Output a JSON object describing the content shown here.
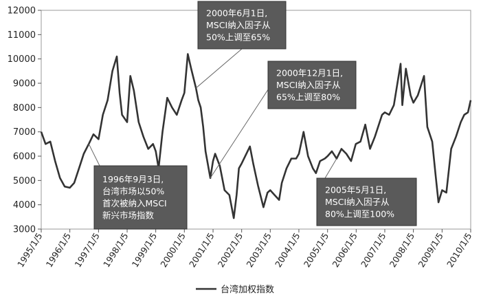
{
  "chart_data": {
    "type": "line",
    "title": "",
    "xlabel": "",
    "ylabel": "",
    "ylim": [
      3000,
      12000
    ],
    "y_ticks": [
      "3000",
      "4000",
      "5000",
      "6000",
      "7000",
      "8000",
      "9000",
      "10000",
      "11000",
      "12000"
    ],
    "x_ticks": [
      "1995/1/5",
      "1996/1/5",
      "1997/1/5",
      "1998/1/5",
      "1999/1/5",
      "2000/1/5",
      "2001/1/5",
      "2002/1/5",
      "2003/1/5",
      "2004/1/5",
      "2005/1/5",
      "2006/1/5",
      "2007/1/5",
      "2008/1/5",
      "2009/1/5",
      "2010/1/5"
    ],
    "legend_position": "bottom",
    "series": [
      {
        "name": "台湾加权指数",
        "color": "#333333",
        "points": [
          [
            "1995/1/5",
            7000
          ],
          [
            "1995/3/1",
            6500
          ],
          [
            "1995/5/1",
            6600
          ],
          [
            "1995/7/1",
            5800
          ],
          [
            "1995/9/1",
            5100
          ],
          [
            "1995/11/1",
            4750
          ],
          [
            "1996/1/5",
            4700
          ],
          [
            "1996/3/1",
            4900
          ],
          [
            "1996/5/1",
            5500
          ],
          [
            "1996/7/1",
            6100
          ],
          [
            "1996/9/3",
            6500
          ],
          [
            "1996/11/1",
            6900
          ],
          [
            "1997/1/5",
            6700
          ],
          [
            "1997/3/1",
            7700
          ],
          [
            "1997/5/1",
            8300
          ],
          [
            "1997/7/1",
            9500
          ],
          [
            "1997/8/26",
            10100
          ],
          [
            "1997/10/1",
            8600
          ],
          [
            "1997/11/1",
            7700
          ],
          [
            "1998/1/5",
            7400
          ],
          [
            "1998/2/15",
            9300
          ],
          [
            "1998/4/1",
            8700
          ],
          [
            "1998/6/1",
            7400
          ],
          [
            "1998/8/1",
            6800
          ],
          [
            "1998/10/1",
            6300
          ],
          [
            "1998/12/1",
            6500
          ],
          [
            "1999/1/5",
            6200
          ],
          [
            "1999/2/10",
            5500
          ],
          [
            "1999/4/1",
            7000
          ],
          [
            "1999/6/1",
            8400
          ],
          [
            "1999/8/1",
            8000
          ],
          [
            "1999/10/1",
            7700
          ],
          [
            "1999/12/1",
            8300
          ],
          [
            "2000/1/5",
            8600
          ],
          [
            "2000/2/18",
            10200
          ],
          [
            "2000/4/1",
            9600
          ],
          [
            "2000/6/1",
            8800
          ],
          [
            "2000/7/1",
            8300
          ],
          [
            "2000/8/1",
            8000
          ],
          [
            "2000/9/1",
            7200
          ],
          [
            "2000/10/1",
            6200
          ],
          [
            "2000/12/1",
            5100
          ],
          [
            "2001/1/5",
            5800
          ],
          [
            "2001/2/1",
            6100
          ],
          [
            "2001/4/1",
            5600
          ],
          [
            "2001/6/1",
            4600
          ],
          [
            "2001/8/1",
            4400
          ],
          [
            "2001/9/26",
            3450
          ],
          [
            "2001/11/1",
            4400
          ],
          [
            "2001/12/1",
            5500
          ],
          [
            "2002/1/5",
            5700
          ],
          [
            "2002/4/20",
            6400
          ],
          [
            "2002/6/1",
            5700
          ],
          [
            "2002/8/1",
            4800
          ],
          [
            "2002/10/10",
            3900
          ],
          [
            "2002/12/1",
            4500
          ],
          [
            "2003/1/5",
            4600
          ],
          [
            "2003/3/1",
            4400
          ],
          [
            "2003/4/28",
            4200
          ],
          [
            "2003/6/1",
            4900
          ],
          [
            "2003/8/1",
            5500
          ],
          [
            "2003/10/1",
            5900
          ],
          [
            "2003/12/1",
            5900
          ],
          [
            "2004/1/5",
            6100
          ],
          [
            "2004/3/5",
            7000
          ],
          [
            "2004/5/1",
            6000
          ],
          [
            "2004/7/1",
            5500
          ],
          [
            "2004/8/10",
            5300
          ],
          [
            "2004/10/1",
            5800
          ],
          [
            "2004/12/1",
            5900
          ],
          [
            "2005/1/5",
            6000
          ],
          [
            "2005/3/1",
            6200
          ],
          [
            "2005/5/1",
            5900
          ],
          [
            "2005/7/1",
            6300
          ],
          [
            "2005/9/1",
            6100
          ],
          [
            "2005/11/1",
            5800
          ],
          [
            "2005/12/31",
            6500
          ],
          [
            "2006/3/1",
            6600
          ],
          [
            "2006/5/1",
            7300
          ],
          [
            "2006/7/1",
            6300
          ],
          [
            "2006/9/1",
            6800
          ],
          [
            "2006/12/1",
            7700
          ],
          [
            "2007/1/5",
            7800
          ],
          [
            "2007/3/1",
            7700
          ],
          [
            "2007/5/1",
            8100
          ],
          [
            "2007/7/26",
            9800
          ],
          [
            "2007/8/17",
            8100
          ],
          [
            "2007/10/1",
            9600
          ],
          [
            "2007/12/1",
            8500
          ],
          [
            "2008/1/5",
            8200
          ],
          [
            "2008/3/1",
            8500
          ],
          [
            "2008/5/20",
            9300
          ],
          [
            "2008/7/1",
            7200
          ],
          [
            "2008/9/1",
            6600
          ],
          [
            "2008/10/15",
            5200
          ],
          [
            "2008/11/20",
            4100
          ],
          [
            "2009/1/5",
            4600
          ],
          [
            "2009/3/1",
            4500
          ],
          [
            "2009/5/1",
            6300
          ],
          [
            "2009/7/1",
            6800
          ],
          [
            "2009/9/1",
            7400
          ],
          [
            "2009/10/15",
            7700
          ],
          [
            "2009/12/1",
            7800
          ],
          [
            "2010/1/5",
            8300
          ]
        ]
      }
    ],
    "annotations": [
      {
        "lines": [
          "1996年9月3日,",
          "台湾市场以50%",
          "首次被纳入MSCI",
          "新兴市场指数"
        ],
        "point": [
          "1996/9/3",
          6500
        ]
      },
      {
        "lines": [
          "2000年6月1日,",
          "MSCI纳入因子从",
          "50%上调至65%"
        ],
        "point": [
          "2000/6/1",
          8800
        ]
      },
      {
        "lines": [
          "2000年12月1日,",
          "MSCI纳入因子从",
          "65%上调至80%"
        ],
        "point": [
          "2000/12/1",
          5100
        ]
      },
      {
        "lines": [
          "2005年5月1日,",
          "MSCI纳入因子从",
          "80%上调至100%"
        ],
        "point": [
          "2005/5/1",
          5900
        ]
      }
    ]
  }
}
